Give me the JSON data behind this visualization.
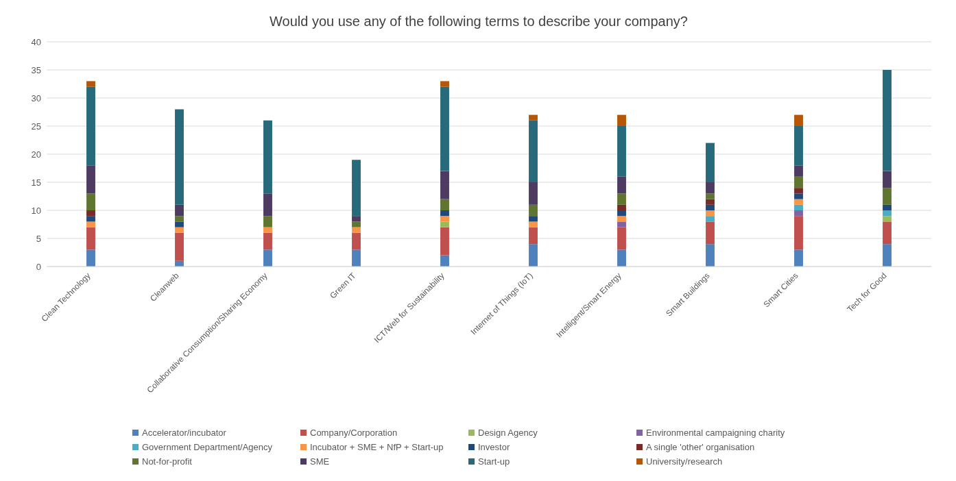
{
  "chart_data": {
    "type": "bar",
    "title": "Would you use any of the following terms to describe your company?",
    "stacked": true,
    "categories": [
      "Clean Technology",
      "Cleanweb",
      "Collaborative Consumption/Sharing Economy",
      "Green IT",
      "ICT/Web for Sustainability",
      "Internet of Things (IoT)",
      "Intelligent/Smart Energy",
      "Smart Buildings",
      "Smart Cities",
      "Tech for Good"
    ],
    "series": [
      {
        "name": "Accelerator/incubator",
        "color": "#4f81bd",
        "values": [
          3,
          1,
          3,
          3,
          2,
          4,
          3,
          4,
          3,
          4
        ]
      },
      {
        "name": "Company/Corporation",
        "color": "#c0504d",
        "values": [
          4,
          5,
          3,
          3,
          5,
          3,
          4,
          4,
          6,
          4
        ]
      },
      {
        "name": "Design Agency",
        "color": "#9bbb59",
        "values": [
          0,
          0,
          0,
          0,
          1,
          0,
          0,
          0,
          0,
          1
        ]
      },
      {
        "name": "Environmental campaigning charity",
        "color": "#8064a2",
        "values": [
          0,
          0,
          0,
          0,
          0,
          0,
          1,
          0,
          1,
          0
        ]
      },
      {
        "name": "Government Department/Agency",
        "color": "#4bacc6",
        "values": [
          0,
          0,
          0,
          0,
          0,
          0,
          0,
          1,
          1,
          1
        ]
      },
      {
        "name": "Incubator + SME + NfP + Start-up",
        "color": "#f79646",
        "values": [
          1,
          1,
          1,
          1,
          1,
          1,
          1,
          1,
          1,
          0
        ]
      },
      {
        "name": "Investor",
        "color": "#1f497d",
        "values": [
          1,
          1,
          0,
          0,
          1,
          1,
          1,
          1,
          1,
          1
        ]
      },
      {
        "name": "A single 'other' organisation",
        "color": "#772c2a",
        "values": [
          1,
          0,
          0,
          0,
          0,
          0,
          1,
          1,
          1,
          0
        ]
      },
      {
        "name": "Not-for-profit",
        "color": "#5f7530",
        "values": [
          3,
          1,
          2,
          1,
          2,
          2,
          2,
          1,
          2,
          3
        ]
      },
      {
        "name": "SME",
        "color": "#4d3b62",
        "values": [
          5,
          2,
          4,
          1,
          5,
          4,
          3,
          2,
          2,
          3
        ]
      },
      {
        "name": "Start-up",
        "color": "#276a7c",
        "values": [
          14,
          17,
          13,
          10,
          15,
          11,
          9,
          7,
          7,
          18
        ]
      },
      {
        "name": "University/research",
        "color": "#b65708",
        "values": [
          1,
          0,
          0,
          0,
          1,
          1,
          2,
          0,
          2,
          0
        ]
      }
    ],
    "ylim": [
      0,
      40
    ],
    "yticks": [
      0,
      5,
      10,
      15,
      20,
      25,
      30,
      35,
      40
    ],
    "grid": "y",
    "legend": "bottom"
  }
}
